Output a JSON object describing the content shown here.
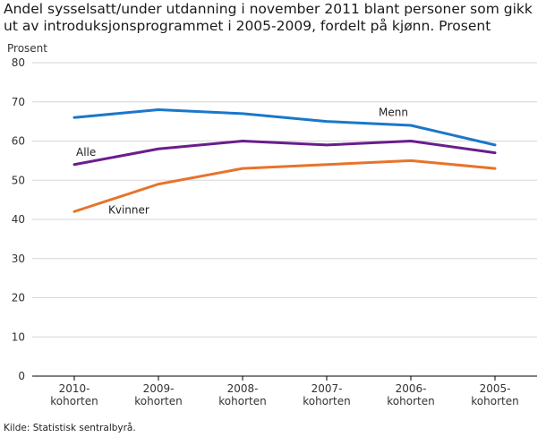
{
  "title": "Andel sysselsatt/under utdanning i november 2011 blant personer som gikk ut av introduksjonsprogrammet i 2005-2009, fordelt på kjønn. Prosent",
  "source": "Kilde: Statistisk sentralbyrå.",
  "chart_data": {
    "type": "line",
    "ylabel": "Prosent",
    "ylim": [
      0,
      80
    ],
    "yticks": [
      0,
      10,
      20,
      30,
      40,
      50,
      60,
      70,
      80
    ],
    "grid": true,
    "categories": [
      [
        "2010-",
        "kohorten"
      ],
      [
        "2009-",
        "kohorten"
      ],
      [
        "2008-",
        "kohorten"
      ],
      [
        "2007-",
        "kohorten"
      ],
      [
        "2006-",
        "kohorten"
      ],
      [
        "2005-",
        "kohorten"
      ]
    ],
    "series": [
      {
        "name": "Menn",
        "color": "#1a78c9",
        "values": [
          66,
          68,
          67,
          65,
          64,
          59
        ]
      },
      {
        "name": "Alle",
        "color": "#6a1d8c",
        "values": [
          54,
          58,
          60,
          59,
          60,
          57
        ]
      },
      {
        "name": "Kvinner",
        "color": "#e8732a",
        "values": [
          42,
          49,
          53,
          54,
          55,
          53
        ]
      }
    ]
  }
}
